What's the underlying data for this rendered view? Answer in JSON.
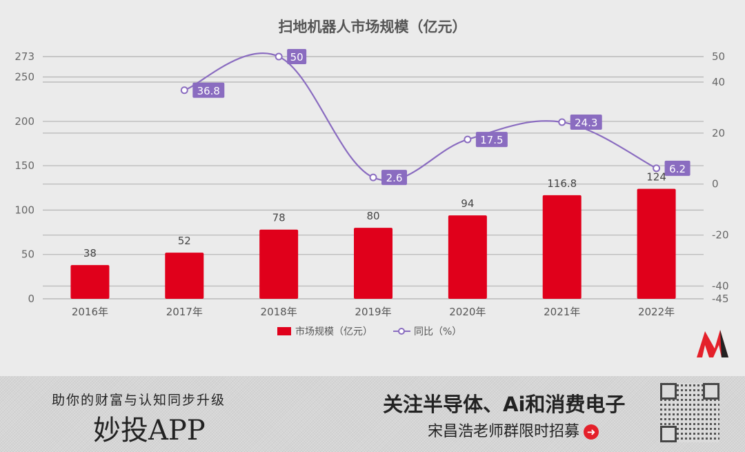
{
  "chart_data": {
    "type": "bar+line",
    "title": "扫地机器人市场规模（亿元）",
    "categories": [
      "2016年",
      "2017年",
      "2018年",
      "2019年",
      "2020年",
      "2021年",
      "2022年"
    ],
    "series": [
      {
        "name": "市场规模（亿元）",
        "type": "bar",
        "axis": "left",
        "color": "#e0001b",
        "values": [
          38,
          52,
          78,
          80,
          94,
          116.8,
          124
        ],
        "labels": [
          "38",
          "52",
          "78",
          "80",
          "94",
          "116.8",
          "124"
        ]
      },
      {
        "name": "同比（%）",
        "type": "line",
        "axis": "right",
        "color": "#8a6cc0",
        "values": [
          null,
          36.8,
          50,
          2.6,
          17.5,
          24.3,
          6.2
        ],
        "labels": [
          "",
          "36.8",
          "50",
          "2.6",
          "17.5",
          "24.3",
          "6.2"
        ]
      }
    ],
    "left_axis": {
      "ylim": [
        0,
        273
      ],
      "ticks": [
        0,
        50,
        100,
        150,
        200,
        250,
        273
      ]
    },
    "right_axis": {
      "ylim": [
        -45,
        50
      ],
      "ticks": [
        -45,
        -40,
        -20,
        0,
        20,
        40,
        50
      ]
    },
    "grid": true,
    "legend": "bottom"
  },
  "banner": {
    "slogan": "助你的财富与认知同步升级",
    "app_name": "妙投APP",
    "follow": "关注半导体、Ai和消费电子",
    "recruit": "宋昌浩老师群限时招募"
  },
  "colors": {
    "bar": "#e0001b",
    "line": "#8a6cc0",
    "background": "#ebebeb"
  }
}
